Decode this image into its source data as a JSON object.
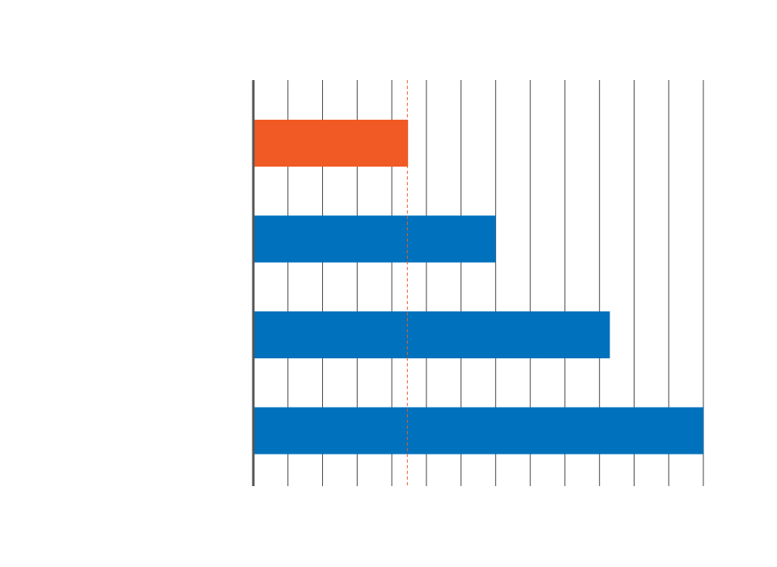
{
  "chart_data": {
    "type": "barh",
    "categories": [
      null,
      null,
      null,
      null
    ],
    "values": [
      4.47,
      7,
      10.3,
      13
    ],
    "colors": [
      "#f15a24",
      "#0071bc",
      "#0071bc",
      "#0071bc"
    ],
    "xlim": [
      0,
      13
    ],
    "xticks": [
      0,
      1,
      2,
      3,
      4,
      5,
      6,
      7,
      8,
      9,
      10,
      11,
      12,
      13
    ],
    "grid": true,
    "reference_line": {
      "value": 4.45,
      "color": "#f15a24"
    }
  }
}
